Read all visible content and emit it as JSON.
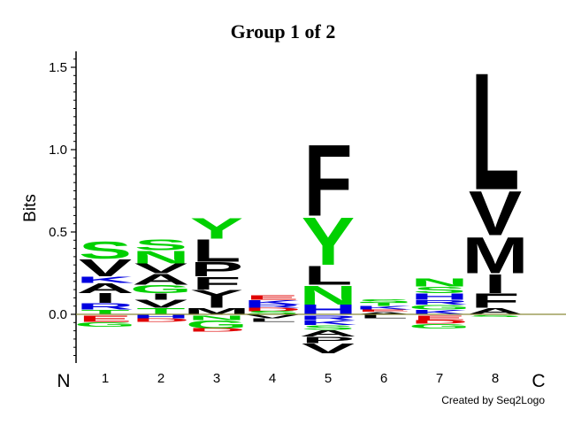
{
  "chart_data": {
    "type": "sequence-logo",
    "title": "Group 1 of 2",
    "ylabel": "Bits",
    "ylim": [
      -0.3,
      1.6
    ],
    "yticks": [
      "0.0",
      "0.5",
      "1.0",
      "1.5"
    ],
    "ytick_values": [
      0.0,
      0.5,
      1.0,
      1.5
    ],
    "positions": [
      "1",
      "2",
      "3",
      "4",
      "5",
      "6",
      "7",
      "8"
    ],
    "left_end": "N",
    "right_end": "C",
    "credit": "Created by Seq2Logo",
    "colors": {
      "hydrophobic": "#000000",
      "polar": "#00d000",
      "basic": "#0000e0",
      "acidic": "#e00000"
    },
    "columns": [
      {
        "position": "1",
        "above": [
          {
            "letter": "S",
            "height": 0.11,
            "color": "polar"
          },
          {
            "letter": "V",
            "height": 0.11,
            "color": "hydrophobic"
          },
          {
            "letter": "K",
            "height": 0.04,
            "color": "basic"
          },
          {
            "letter": "A",
            "height": 0.06,
            "color": "hydrophobic"
          },
          {
            "letter": "I",
            "height": 0.06,
            "color": "hydrophobic"
          },
          {
            "letter": "R",
            "height": 0.04,
            "color": "basic"
          },
          {
            "letter": "T",
            "height": 0.03,
            "color": "polar"
          }
        ],
        "below": [
          {
            "letter": "E",
            "height": 0.04,
            "color": "acidic"
          },
          {
            "letter": "G",
            "height": 0.03,
            "color": "polar"
          }
        ]
      },
      {
        "position": "2",
        "above": [
          {
            "letter": "S",
            "height": 0.07,
            "color": "polar"
          },
          {
            "letter": "N",
            "height": 0.08,
            "color": "polar"
          },
          {
            "letter": "V",
            "height": 0.06,
            "color": "hydrophobic"
          },
          {
            "letter": "A",
            "height": 0.07,
            "color": "hydrophobic"
          },
          {
            "letter": "G",
            "height": 0.05,
            "color": "polar"
          },
          {
            "letter": "I",
            "height": 0.04,
            "color": "hydrophobic"
          },
          {
            "letter": "V",
            "height": 0.05,
            "color": "hydrophobic"
          },
          {
            "letter": "T",
            "height": 0.04,
            "color": "polar"
          }
        ],
        "below": [
          {
            "letter": "H",
            "height": 0.02,
            "color": "basic"
          },
          {
            "letter": "D",
            "height": 0.02,
            "color": "acidic"
          }
        ]
      },
      {
        "position": "3",
        "above": [
          {
            "letter": "Y",
            "height": 0.13,
            "color": "polar"
          },
          {
            "letter": "L",
            "height": 0.14,
            "color": "hydrophobic"
          },
          {
            "letter": "P",
            "height": 0.09,
            "color": "hydrophobic"
          },
          {
            "letter": "F",
            "height": 0.08,
            "color": "hydrophobic"
          },
          {
            "letter": "Y",
            "height": 0.06,
            "color": "hydrophobic"
          },
          {
            "letter": "I",
            "height": 0.05,
            "color": "hydrophobic"
          },
          {
            "letter": "M",
            "height": 0.04,
            "color": "hydrophobic"
          }
        ],
        "below": [
          {
            "letter": "N",
            "height": 0.03,
            "color": "polar"
          },
          {
            "letter": "G",
            "height": 0.05,
            "color": "polar"
          },
          {
            "letter": "D",
            "height": 0.02,
            "color": "acidic"
          }
        ]
      },
      {
        "position": "4",
        "above": [
          {
            "letter": "E",
            "height": 0.03,
            "color": "acidic"
          },
          {
            "letter": "K",
            "height": 0.03,
            "color": "basic"
          },
          {
            "letter": "R",
            "height": 0.02,
            "color": "basic"
          },
          {
            "letter": "D",
            "height": 0.02,
            "color": "acidic"
          },
          {
            "letter": "S",
            "height": 0.02,
            "color": "polar"
          }
        ],
        "below": [
          {
            "letter": "V",
            "height": 0.02,
            "color": "hydrophobic"
          },
          {
            "letter": "L",
            "height": 0.02,
            "color": "hydrophobic"
          }
        ]
      },
      {
        "position": "5",
        "above": [
          {
            "letter": "F",
            "height": 0.45,
            "color": "hydrophobic"
          },
          {
            "letter": "Y",
            "height": 0.3,
            "color": "polar"
          },
          {
            "letter": "L",
            "height": 0.12,
            "color": "hydrophobic"
          },
          {
            "letter": "N",
            "height": 0.12,
            "color": "polar"
          },
          {
            "letter": "H",
            "height": 0.06,
            "color": "basic"
          }
        ],
        "below": [
          {
            "letter": "R",
            "height": 0.03,
            "color": "basic"
          },
          {
            "letter": "K",
            "height": 0.03,
            "color": "basic"
          },
          {
            "letter": "S",
            "height": 0.03,
            "color": "polar"
          },
          {
            "letter": "A",
            "height": 0.04,
            "color": "hydrophobic"
          },
          {
            "letter": "P",
            "height": 0.04,
            "color": "hydrophobic"
          },
          {
            "letter": "V",
            "height": 0.06,
            "color": "hydrophobic"
          }
        ]
      },
      {
        "position": "6",
        "above": [
          {
            "letter": "S",
            "height": 0.02,
            "color": "polar"
          },
          {
            "letter": "T",
            "height": 0.02,
            "color": "polar"
          },
          {
            "letter": "K",
            "height": 0.02,
            "color": "basic"
          },
          {
            "letter": "E",
            "height": 0.015,
            "color": "acidic"
          },
          {
            "letter": "A",
            "height": 0.015,
            "color": "hydrophobic"
          }
        ],
        "below": [
          {
            "letter": "L",
            "height": 0.02,
            "color": "hydrophobic"
          }
        ]
      },
      {
        "position": "7",
        "above": [
          {
            "letter": "N",
            "height": 0.05,
            "color": "polar"
          },
          {
            "letter": "S",
            "height": 0.04,
            "color": "polar"
          },
          {
            "letter": "H",
            "height": 0.04,
            "color": "basic"
          },
          {
            "letter": "R",
            "height": 0.03,
            "color": "basic"
          },
          {
            "letter": "G",
            "height": 0.03,
            "color": "polar"
          },
          {
            "letter": "K",
            "height": 0.03,
            "color": "basic"
          }
        ],
        "below": [
          {
            "letter": "E",
            "height": 0.03,
            "color": "acidic"
          },
          {
            "letter": "D",
            "height": 0.02,
            "color": "acidic"
          },
          {
            "letter": "G",
            "height": 0.03,
            "color": "polar"
          }
        ]
      },
      {
        "position": "8",
        "above": [
          {
            "letter": "L",
            "height": 0.74,
            "color": "hydrophobic"
          },
          {
            "letter": "V",
            "height": 0.28,
            "color": "hydrophobic"
          },
          {
            "letter": "M",
            "height": 0.23,
            "color": "hydrophobic"
          },
          {
            "letter": "I",
            "height": 0.12,
            "color": "hydrophobic"
          },
          {
            "letter": "F",
            "height": 0.09,
            "color": "hydrophobic"
          },
          {
            "letter": "A",
            "height": 0.04,
            "color": "hydrophobic"
          }
        ],
        "below": [
          {
            "letter": "S",
            "height": 0.01,
            "color": "polar"
          }
        ]
      }
    ]
  }
}
